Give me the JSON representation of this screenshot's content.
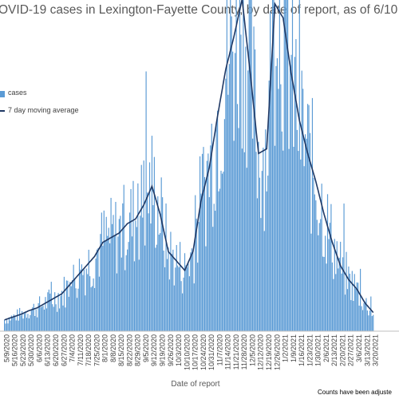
{
  "chart_data": {
    "type": "bar",
    "title": "OVID-19 cases in Lexington-Fayette County, by date of report, as of 6/10",
    "xlabel": "Date of report",
    "ylabel": "",
    "grid": false,
    "legend_placement": "left",
    "bar_color": "#5b9bd5",
    "line_color": "#1f3864",
    "series": [
      {
        "name": "cases",
        "type": "bar"
      },
      {
        "name": "7 day moving average",
        "type": "line"
      }
    ],
    "x_tick_labels": [
      "5/9/2020",
      "5/16/2020",
      "5/23/2020",
      "5/30/2020",
      "6/6/2020",
      "6/13/2020",
      "6/20/2020",
      "6/27/2020",
      "7/4/2020",
      "7/11/2020",
      "7/18/2020",
      "7/25/2020",
      "8/1/2020",
      "8/8/2020",
      "8/15/2020",
      "8/22/2020",
      "8/29/2020",
      "9/5/2020",
      "9/12/2020",
      "9/19/2020",
      "9/26/2020",
      "10/3/2020",
      "10/10/2020",
      "10/17/2020",
      "10/24/2020",
      "10/31/2020",
      "11/7/2020",
      "11/14/2020",
      "11/21/2020",
      "11/28/2020",
      "12/5/2020",
      "12/12/2020",
      "12/19/2020",
      "12/26/2020",
      "1/2/2021",
      "1/9/2021",
      "1/16/2021",
      "1/23/2021",
      "1/30/2021",
      "2/6/2021",
      "2/13/2021",
      "2/20/2021",
      "2/27/2021",
      "3/6/2021",
      "3/13/2021",
      "3/20/2021"
    ],
    "weekly_average_cases": [
      12,
      15,
      18,
      22,
      25,
      30,
      35,
      40,
      50,
      60,
      70,
      80,
      95,
      100,
      105,
      115,
      120,
      135,
      155,
      125,
      85,
      75,
      65,
      85,
      140,
      175,
      230,
      280,
      315,
      355,
      275,
      190,
      195,
      350,
      335,
      275,
      225,
      190,
      160,
      125,
      95,
      70,
      55,
      45,
      30,
      20
    ]
  },
  "footnote": "Counts have been adjuste"
}
